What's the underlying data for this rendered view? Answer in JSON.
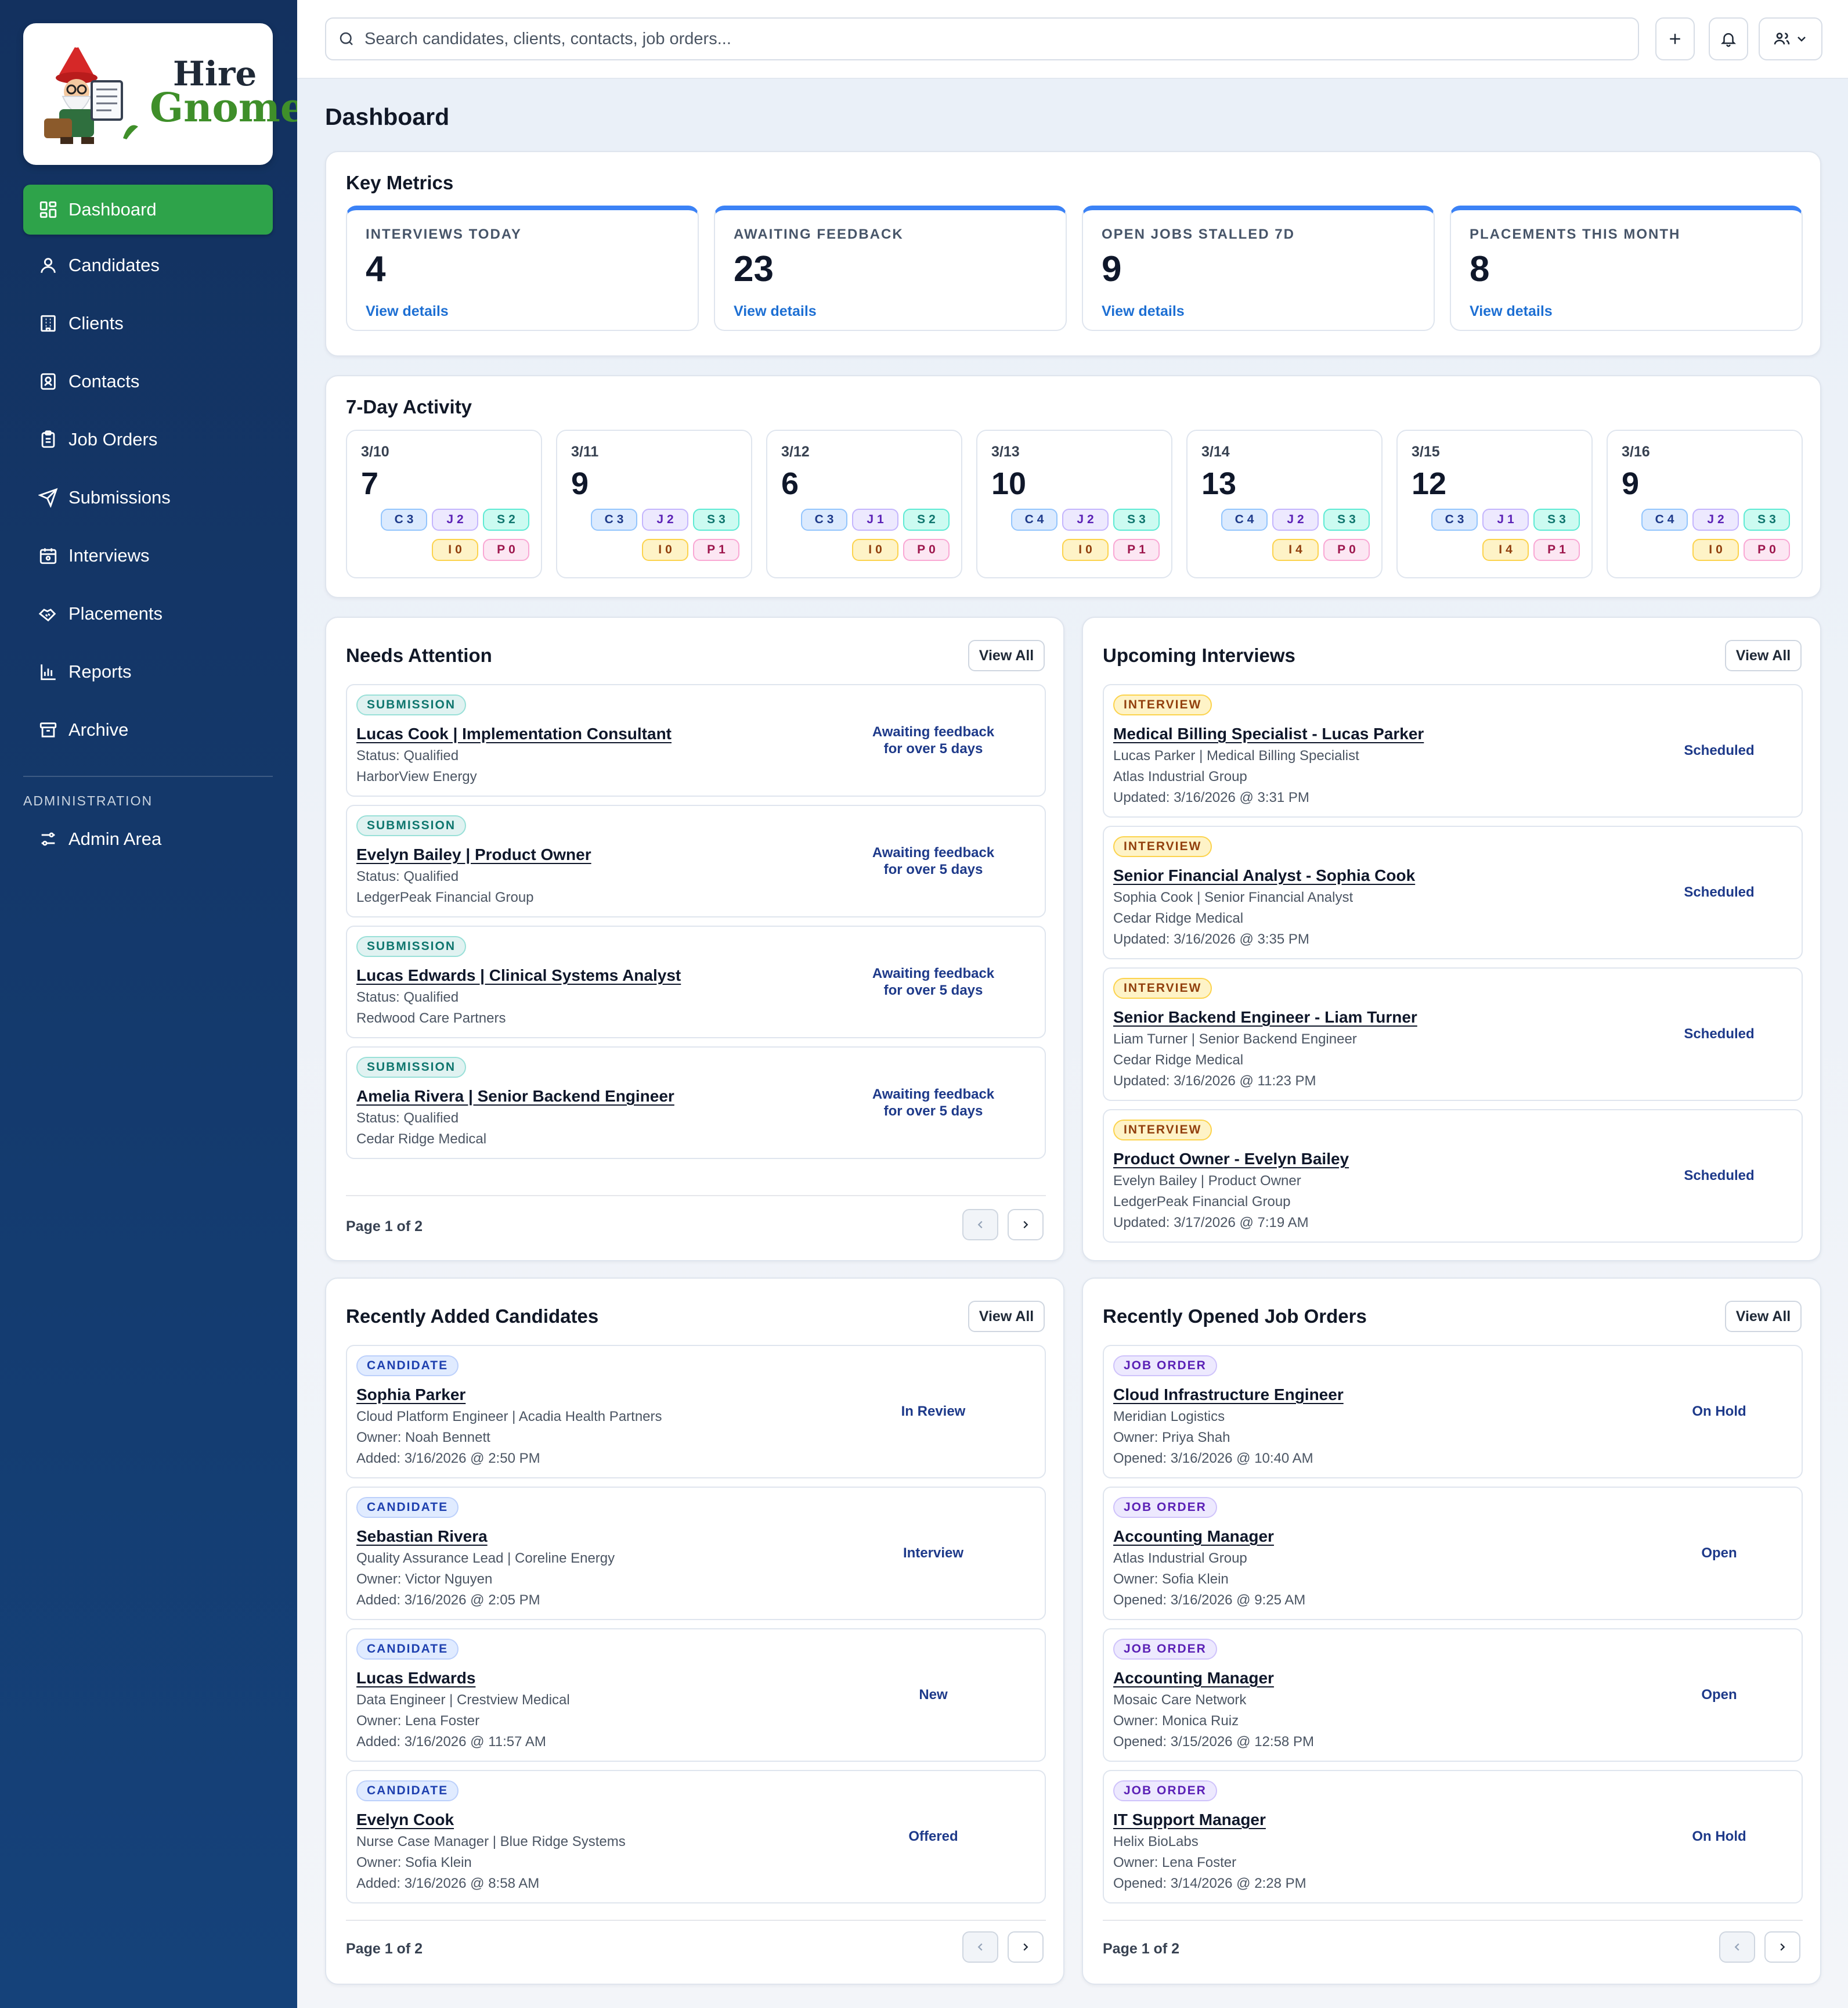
{
  "brand": {
    "line1": "Hire",
    "line2": "Gnome"
  },
  "nav": {
    "items": [
      {
        "label": "Dashboard"
      },
      {
        "label": "Candidates"
      },
      {
        "label": "Clients"
      },
      {
        "label": "Contacts"
      },
      {
        "label": "Job Orders"
      },
      {
        "label": "Submissions"
      },
      {
        "label": "Interviews"
      },
      {
        "label": "Placements"
      },
      {
        "label": "Reports"
      },
      {
        "label": "Archive"
      }
    ],
    "admin_section": "ADMINISTRATION",
    "admin_item": "Admin Area"
  },
  "topbar": {
    "search_placeholder": "Search candidates, clients, contacts, job orders..."
  },
  "page": {
    "title": "Dashboard"
  },
  "metrics": {
    "title": "Key Metrics",
    "cards": [
      {
        "label": "INTERVIEWS TODAY",
        "value": "4",
        "link": "View details"
      },
      {
        "label": "AWAITING FEEDBACK",
        "value": "23",
        "link": "View details"
      },
      {
        "label": "OPEN JOBS STALLED 7D",
        "value": "9",
        "link": "View details"
      },
      {
        "label": "PLACEMENTS THIS MONTH",
        "value": "8",
        "link": "View details"
      }
    ]
  },
  "activity": {
    "title": "7-Day Activity",
    "days": [
      {
        "date": "3/10",
        "total": "7",
        "chips": [
          "C3",
          "J2",
          "S2",
          "I0",
          "P0"
        ]
      },
      {
        "date": "3/11",
        "total": "9",
        "chips": [
          "C3",
          "J2",
          "S3",
          "I0",
          "P1"
        ]
      },
      {
        "date": "3/12",
        "total": "6",
        "chips": [
          "C3",
          "J1",
          "S2",
          "I0",
          "P0"
        ]
      },
      {
        "date": "3/13",
        "total": "10",
        "chips": [
          "C4",
          "J2",
          "S3",
          "I0",
          "P1"
        ]
      },
      {
        "date": "3/14",
        "total": "13",
        "chips": [
          "C4",
          "J2",
          "S3",
          "I4",
          "P0"
        ]
      },
      {
        "date": "3/15",
        "total": "12",
        "chips": [
          "C3",
          "J1",
          "S3",
          "I4",
          "P1"
        ]
      },
      {
        "date": "3/16",
        "total": "9",
        "chips": [
          "C4",
          "J2",
          "S3",
          "I0",
          "P0"
        ]
      }
    ]
  },
  "needs_attention": {
    "title": "Needs Attention",
    "view_all": "View All",
    "items": [
      {
        "badge": "SUBMISSION",
        "title": "Lucas Cook | Implementation Consultant",
        "line1": "Status: Qualified",
        "line2": "HarborView Energy",
        "status": "Awaiting feedback for over 5 days"
      },
      {
        "badge": "SUBMISSION",
        "title": "Evelyn Bailey | Product Owner",
        "line1": "Status: Qualified",
        "line2": "LedgerPeak Financial Group",
        "status": "Awaiting feedback for over 5 days"
      },
      {
        "badge": "SUBMISSION",
        "title": "Lucas Edwards | Clinical Systems Analyst",
        "line1": "Status: Qualified",
        "line2": "Redwood Care Partners",
        "status": "Awaiting feedback for over 5 days"
      },
      {
        "badge": "SUBMISSION",
        "title": "Amelia Rivera | Senior Backend Engineer",
        "line1": "Status: Qualified",
        "line2": "Cedar Ridge Medical",
        "status": "Awaiting feedback for over 5 days"
      }
    ],
    "pager": "Page 1 of 2"
  },
  "upcoming_interviews": {
    "title": "Upcoming Interviews",
    "view_all": "View All",
    "items": [
      {
        "badge": "INTERVIEW",
        "title": "Medical Billing Specialist - Lucas Parker",
        "line1": "Lucas Parker | Medical Billing Specialist",
        "line2": "Atlas Industrial Group",
        "line3": "Updated: 3/16/2026 @ 3:31 PM",
        "status": "Scheduled"
      },
      {
        "badge": "INTERVIEW",
        "title": "Senior Financial Analyst - Sophia Cook",
        "line1": "Sophia Cook | Senior Financial Analyst",
        "line2": "Cedar Ridge Medical",
        "line3": "Updated: 3/16/2026 @ 3:35 PM",
        "status": "Scheduled"
      },
      {
        "badge": "INTERVIEW",
        "title": "Senior Backend Engineer - Liam Turner",
        "line1": "Liam Turner | Senior Backend Engineer",
        "line2": "Cedar Ridge Medical",
        "line3": "Updated: 3/16/2026 @ 11:23 PM",
        "status": "Scheduled"
      },
      {
        "badge": "INTERVIEW",
        "title": "Product Owner - Evelyn Bailey",
        "line1": "Evelyn Bailey | Product Owner",
        "line2": "LedgerPeak Financial Group",
        "line3": "Updated: 3/17/2026 @ 7:19 AM",
        "status": "Scheduled"
      }
    ]
  },
  "recent_candidates": {
    "title": "Recently Added Candidates",
    "view_all": "View All",
    "items": [
      {
        "badge": "CANDIDATE",
        "title": "Sophia Parker",
        "line1": "Cloud Platform Engineer | Acadia Health Partners",
        "line2": "Owner: Noah Bennett",
        "line3": "Added: 3/16/2026 @ 2:50 PM",
        "status": "In Review"
      },
      {
        "badge": "CANDIDATE",
        "title": "Sebastian Rivera",
        "line1": "Quality Assurance Lead | Coreline Energy",
        "line2": "Owner: Victor Nguyen",
        "line3": "Added: 3/16/2026 @ 2:05 PM",
        "status": "Interview"
      },
      {
        "badge": "CANDIDATE",
        "title": "Lucas Edwards",
        "line1": "Data Engineer | Crestview Medical",
        "line2": "Owner: Lena Foster",
        "line3": "Added: 3/16/2026 @ 11:57 AM",
        "status": "New"
      },
      {
        "badge": "CANDIDATE",
        "title": "Evelyn Cook",
        "line1": "Nurse Case Manager | Blue Ridge Systems",
        "line2": "Owner: Sofia Klein",
        "line3": "Added: 3/16/2026 @ 8:58 AM",
        "status": "Offered"
      }
    ],
    "pager": "Page 1 of 2"
  },
  "recent_jobs": {
    "title": "Recently Opened Job Orders",
    "view_all": "View All",
    "items": [
      {
        "badge": "JOB ORDER",
        "title": "Cloud Infrastructure Engineer",
        "line1": "Meridian Logistics",
        "line2": "Owner: Priya Shah",
        "line3": "Opened: 3/16/2026 @ 10:40 AM",
        "status": "On Hold"
      },
      {
        "badge": "JOB ORDER",
        "title": "Accounting Manager",
        "line1": "Atlas Industrial Group",
        "line2": "Owner: Sofia Klein",
        "line3": "Opened: 3/16/2026 @ 9:25 AM",
        "status": "Open"
      },
      {
        "badge": "JOB ORDER",
        "title": "Accounting Manager",
        "line1": "Mosaic Care Network",
        "line2": "Owner: Monica Ruiz",
        "line3": "Opened: 3/15/2026 @ 12:58 PM",
        "status": "Open"
      },
      {
        "badge": "JOB ORDER",
        "title": "IT Support Manager",
        "line1": "Helix BioLabs",
        "line2": "Owner: Lena Foster",
        "line3": "Opened: 3/14/2026 @ 2:28 PM",
        "status": "On Hold"
      }
    ],
    "pager": "Page 1 of 2"
  }
}
